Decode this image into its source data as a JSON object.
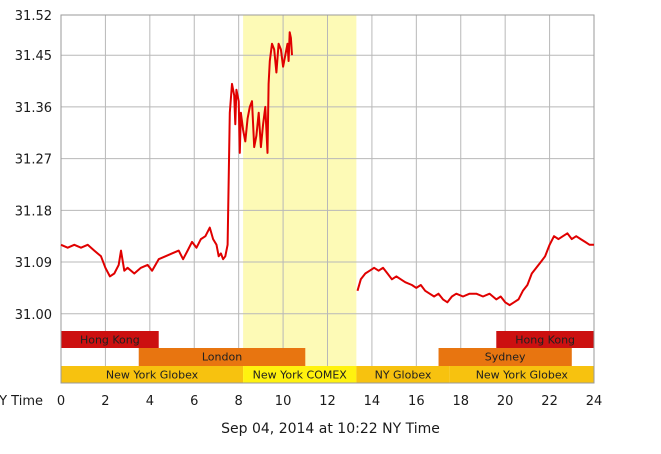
{
  "chart_data": {
    "type": "line",
    "x_unit_label": "NY Time",
    "x_ticks": [
      0,
      2,
      4,
      6,
      8,
      10,
      12,
      14,
      16,
      18,
      20,
      22,
      24
    ],
    "y_ticks": [
      "31.00",
      "31.09",
      "31.18",
      "31.27",
      "31.36",
      "31.45",
      "31.52"
    ],
    "xlim": [
      0,
      24
    ],
    "ylim": [
      30.97,
      31.52
    ],
    "grid": true,
    "highlight_range": [
      8.2,
      13.3
    ],
    "highlight_color": "#fdfab6",
    "line_color": "#e00000",
    "series": [
      {
        "points": [
          [
            0,
            31.12
          ],
          [
            0.3,
            31.115
          ],
          [
            0.6,
            31.12
          ],
          [
            0.9,
            31.115
          ],
          [
            1.2,
            31.12
          ],
          [
            1.5,
            31.11
          ],
          [
            1.8,
            31.1
          ],
          [
            2.0,
            31.08
          ],
          [
            2.2,
            31.065
          ],
          [
            2.4,
            31.07
          ],
          [
            2.6,
            31.085
          ],
          [
            2.7,
            31.11
          ],
          [
            2.85,
            31.075
          ],
          [
            3.0,
            31.08
          ],
          [
            3.3,
            31.07
          ],
          [
            3.6,
            31.08
          ],
          [
            3.9,
            31.085
          ],
          [
            4.1,
            31.075
          ],
          [
            4.4,
            31.095
          ],
          [
            4.7,
            31.1
          ],
          [
            5.0,
            31.105
          ],
          [
            5.3,
            31.11
          ],
          [
            5.5,
            31.095
          ],
          [
            5.7,
            31.11
          ],
          [
            5.9,
            31.125
          ],
          [
            6.1,
            31.115
          ],
          [
            6.3,
            31.13
          ],
          [
            6.5,
            31.135
          ],
          [
            6.7,
            31.15
          ],
          [
            6.85,
            31.13
          ],
          [
            7.0,
            31.12
          ],
          [
            7.1,
            31.1
          ],
          [
            7.2,
            31.105
          ],
          [
            7.3,
            31.095
          ],
          [
            7.4,
            31.1
          ],
          [
            7.5,
            31.12
          ],
          [
            7.6,
            31.35
          ],
          [
            7.7,
            31.4
          ],
          [
            7.8,
            31.38
          ],
          [
            7.85,
            31.33
          ],
          [
            7.9,
            31.39
          ],
          [
            8.0,
            31.37
          ],
          [
            8.05,
            31.28
          ],
          [
            8.1,
            31.35
          ],
          [
            8.2,
            31.32
          ],
          [
            8.3,
            31.3
          ],
          [
            8.4,
            31.34
          ],
          [
            8.5,
            31.36
          ],
          [
            8.6,
            31.37
          ],
          [
            8.7,
            31.29
          ],
          [
            8.8,
            31.31
          ],
          [
            8.9,
            31.35
          ],
          [
            9.0,
            31.29
          ],
          [
            9.1,
            31.33
          ],
          [
            9.2,
            31.36
          ],
          [
            9.3,
            31.28
          ],
          [
            9.35,
            31.4
          ],
          [
            9.4,
            31.44
          ],
          [
            9.5,
            31.47
          ],
          [
            9.6,
            31.46
          ],
          [
            9.7,
            31.42
          ],
          [
            9.8,
            31.47
          ],
          [
            9.9,
            31.46
          ],
          [
            10.0,
            31.43
          ],
          [
            10.1,
            31.45
          ],
          [
            10.2,
            31.47
          ],
          [
            10.25,
            31.44
          ],
          [
            10.3,
            31.49
          ],
          [
            10.35,
            31.48
          ],
          [
            10.4,
            31.45
          ]
        ]
      },
      {
        "points": [
          [
            13.35,
            31.04
          ],
          [
            13.5,
            31.06
          ],
          [
            13.7,
            31.07
          ],
          [
            13.9,
            31.075
          ],
          [
            14.1,
            31.08
          ],
          [
            14.3,
            31.075
          ],
          [
            14.5,
            31.08
          ],
          [
            14.7,
            31.07
          ],
          [
            14.9,
            31.06
          ],
          [
            15.1,
            31.065
          ],
          [
            15.3,
            31.06
          ],
          [
            15.5,
            31.055
          ],
          [
            15.8,
            31.05
          ],
          [
            16.0,
            31.045
          ],
          [
            16.2,
            31.05
          ],
          [
            16.4,
            31.04
          ],
          [
            16.6,
            31.035
          ],
          [
            16.8,
            31.03
          ],
          [
            17.0,
            31.035
          ],
          [
            17.2,
            31.025
          ],
          [
            17.4,
            31.02
          ],
          [
            17.6,
            31.03
          ],
          [
            17.8,
            31.035
          ],
          [
            18.1,
            31.03
          ],
          [
            18.4,
            31.035
          ],
          [
            18.7,
            31.035
          ],
          [
            19.0,
            31.03
          ],
          [
            19.3,
            31.035
          ],
          [
            19.6,
            31.025
          ],
          [
            19.8,
            31.03
          ],
          [
            20.0,
            31.02
          ],
          [
            20.2,
            31.015
          ],
          [
            20.4,
            31.02
          ],
          [
            20.6,
            31.025
          ],
          [
            20.8,
            31.04
          ],
          [
            21.0,
            31.05
          ],
          [
            21.2,
            31.07
          ],
          [
            21.4,
            31.08
          ],
          [
            21.6,
            31.09
          ],
          [
            21.8,
            31.1
          ],
          [
            22.0,
            31.12
          ],
          [
            22.2,
            31.135
          ],
          [
            22.4,
            31.13
          ],
          [
            22.6,
            31.135
          ],
          [
            22.8,
            31.14
          ],
          [
            23.0,
            31.13
          ],
          [
            23.2,
            31.135
          ],
          [
            23.4,
            31.13
          ],
          [
            23.6,
            31.125
          ],
          [
            23.8,
            31.12
          ],
          [
            24.0,
            31.12
          ]
        ]
      }
    ],
    "market_bands": [
      {
        "label": "Hong Kong",
        "start": 0,
        "end": 4.4,
        "row": 0,
        "color": "#cc1010"
      },
      {
        "label": "Hong Kong",
        "start": 19.6,
        "end": 24,
        "row": 0,
        "color": "#cc1010"
      },
      {
        "label": "London",
        "start": 3.5,
        "end": 11,
        "row": 1,
        "color": "#e87510"
      },
      {
        "label": "Sydney",
        "start": 17,
        "end": 23,
        "row": 1,
        "color": "#e87510"
      },
      {
        "label": "New York Globex",
        "start": 0,
        "end": 8.2,
        "row": 2,
        "color": "#f7c20f"
      },
      {
        "label": "New York COMEX",
        "start": 8.2,
        "end": 13.3,
        "row": 2,
        "color": "#fff20f"
      },
      {
        "label": "NY Globex",
        "start": 13.3,
        "end": 17.5,
        "row": 2,
        "color": "#f7c20f"
      },
      {
        "label": "New York Globex",
        "start": 17.5,
        "end": 24,
        "row": 2,
        "color": "#f7c20f"
      }
    ]
  },
  "footer": {
    "timestamp": "Sep 04, 2014 at 10:22 NY Time"
  }
}
